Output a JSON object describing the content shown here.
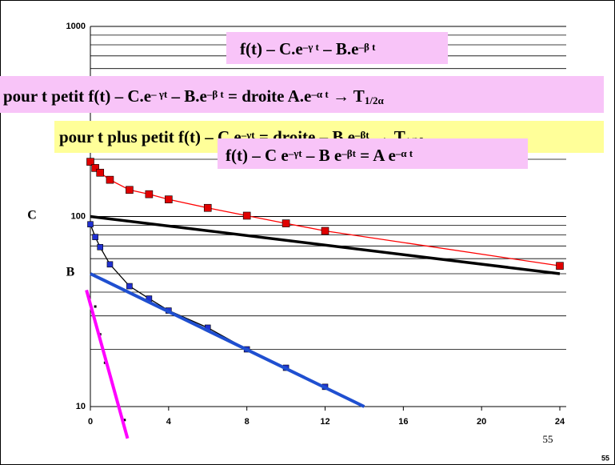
{
  "chart_data": {
    "type": "line",
    "log_y": true,
    "xlim": [
      0,
      24
    ],
    "xticks": [
      0,
      4,
      8,
      12,
      16,
      20,
      24
    ],
    "ylim": [
      10,
      1000
    ],
    "yticks": [
      10,
      100,
      1000
    ],
    "yminorticks": [
      20,
      30,
      40,
      50,
      60,
      70,
      80,
      90,
      200,
      300,
      400,
      500,
      600,
      700,
      800,
      900
    ],
    "grid": true,
    "series": [
      {
        "color": "#ff0000",
        "marker": "square",
        "marker_color": "#e00000",
        "x": [
          0,
          0.25,
          0.5,
          1,
          2,
          3,
          4,
          6,
          8,
          10,
          12,
          24
        ],
        "values": [
          194,
          180,
          170,
          156,
          138,
          131,
          123,
          111,
          101,
          92,
          84,
          55
        ]
      },
      {
        "color": "#000000",
        "marker": "square",
        "marker_color": "#2030d0",
        "x": [
          0,
          0.25,
          0.5,
          1,
          2,
          3,
          4,
          6,
          8,
          10,
          12
        ],
        "values": [
          91,
          78,
          69,
          56,
          43,
          37,
          32,
          26,
          20,
          16,
          12.7
        ]
      },
      {
        "color": null,
        "marker": "dot",
        "marker_color": "#000000",
        "x": [
          0.25,
          0.5,
          0.75,
          1.75
        ],
        "values": [
          33.6,
          24,
          17,
          8.5
        ]
      },
      {
        "color": "#000000",
        "width": 3.5,
        "x": [
          0,
          24
        ],
        "values": [
          100,
          50
        ]
      },
      {
        "color": "#1f4fd0",
        "width": 4,
        "x": [
          0,
          14
        ],
        "values": [
          50,
          10
        ]
      },
      {
        "color": "#ff00ff",
        "width": 4,
        "x": [
          -0.2,
          1.9
        ],
        "values": [
          41,
          6.8
        ]
      }
    ],
    "axis_labels": [
      "C",
      "B"
    ],
    "annotations": [
      {
        "fill": "#f8c4f8",
        "parts": [
          "f(t) – C.e",
          {
            "sup": "–γ t"
          },
          " – B.e",
          {
            "sup": "–β t"
          }
        ]
      },
      {
        "fill": "#f8c4f8",
        "parts": [
          "pour t petit    f(t) – C.e",
          {
            "sup": "– γt"
          },
          " – B.e",
          {
            "sup": "–β t"
          },
          " = droite    A.e",
          {
            "sup": "–α t"
          },
          " → T",
          {
            "sub": "1/2α"
          }
        ]
      },
      {
        "fill": "#ffff99",
        "parts": [
          "pour t plus petit    f(t) – C.e",
          {
            "sup": "–γt"
          },
          " = droite – B.e",
          {
            "sup": "–βt"
          },
          " → T",
          {
            "sub": "1/2β"
          }
        ]
      },
      {
        "fill": "#f8c4f8",
        "parts": [
          "f(t) – C e",
          {
            "sup": "–γt"
          },
          " – B e",
          {
            "sup": "–βt"
          },
          " = A e",
          {
            "sup": "–α t"
          }
        ]
      }
    ],
    "page_numbers": [
      "55",
      "55"
    ]
  }
}
